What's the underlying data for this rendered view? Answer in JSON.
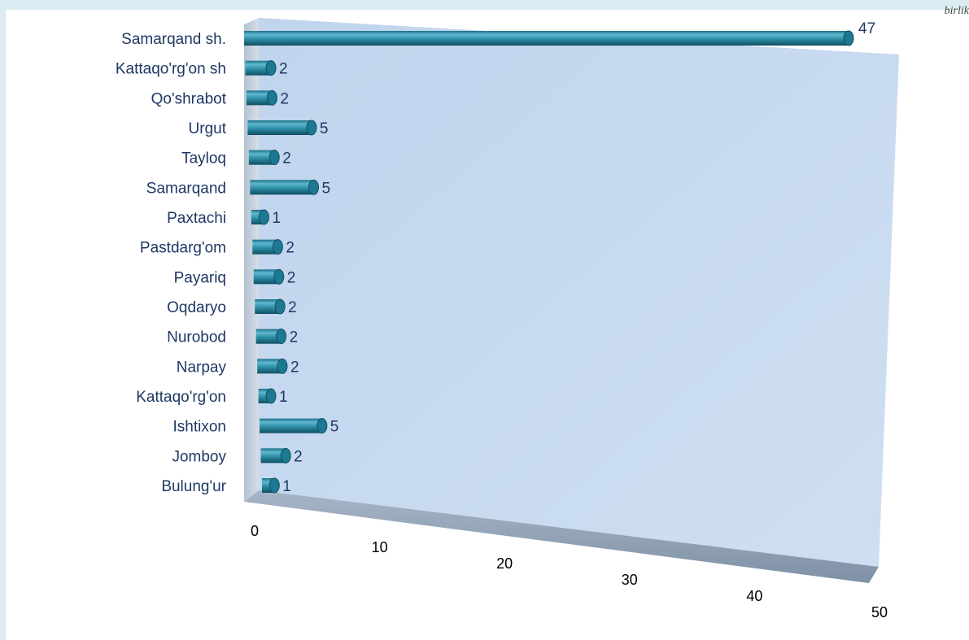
{
  "corner_note": "birlik",
  "chart_data": {
    "type": "bar",
    "orientation": "horizontal",
    "style": "3d-cylinder",
    "title": "",
    "xlabel": "",
    "ylabel": "",
    "xlim": [
      0,
      50
    ],
    "x_ticks": [
      0,
      10,
      20,
      30,
      40,
      50
    ],
    "grid": false,
    "legend": "none",
    "colors": {
      "bar": "#2f8fa8",
      "wall": "#c8daf0",
      "floor": "#8fa2b8"
    },
    "categories": [
      "Samarqand sh.",
      "Kattaqo'rg'on  sh",
      "Qo'shrabot",
      "Urgut",
      "Tayloq",
      "Samarqand",
      "Paxtachi",
      "Pastdarg'om",
      "Payariq",
      "Oqdaryo",
      "Nurobod",
      "Narpay",
      "Kattaqo'rg'on",
      "Ishtixon",
      "Jomboy",
      "Bulung'ur"
    ],
    "values": [
      47,
      2,
      2,
      5,
      2,
      5,
      1,
      2,
      2,
      2,
      2,
      2,
      1,
      5,
      2,
      1
    ]
  }
}
